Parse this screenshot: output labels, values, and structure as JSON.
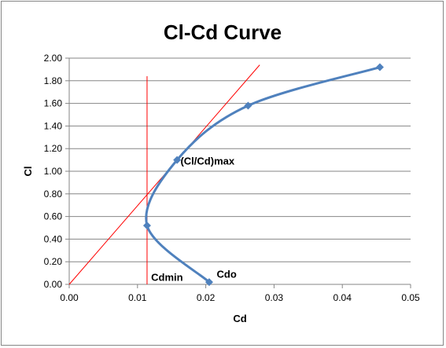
{
  "chart_data": {
    "type": "line",
    "title": "Cl-Cd Curve",
    "xlabel": "Cd",
    "ylabel": "Cl",
    "xlim": [
      0,
      0.05
    ],
    "ylim": [
      0,
      2.0
    ],
    "x_ticks": [
      "0.00",
      "0.01",
      "0.02",
      "0.03",
      "0.04",
      "0.05"
    ],
    "y_ticks": [
      "0.00",
      "0.20",
      "0.40",
      "0.60",
      "0.80",
      "1.00",
      "1.20",
      "1.40",
      "1.60",
      "1.80",
      "2.00"
    ],
    "grid": "horizontal",
    "legend": "none",
    "series": [
      {
        "color": "#4f81bd",
        "marker": "diamond",
        "x": [
          0.0205,
          0.0114,
          0.0158,
          0.0262,
          0.0455
        ],
        "y": [
          0.02,
          0.52,
          1.1,
          1.58,
          1.92
        ]
      }
    ],
    "reference_lines": [
      {
        "color": "#ff0000",
        "x": [
          0.0,
          0.0279
        ],
        "y": [
          0.0,
          1.94
        ]
      },
      {
        "color": "#ff0000",
        "x": [
          0.0114,
          0.0114
        ],
        "y": [
          0.0,
          1.84
        ]
      }
    ],
    "annotations": [
      {
        "text": "Cdo",
        "x": 0.0216,
        "y": 0.06
      },
      {
        "text": "Cdmin",
        "x": 0.012,
        "y": 0.03
      },
      {
        "text": "(Cl/Cd)max",
        "x": 0.0163,
        "y": 1.06
      }
    ]
  }
}
